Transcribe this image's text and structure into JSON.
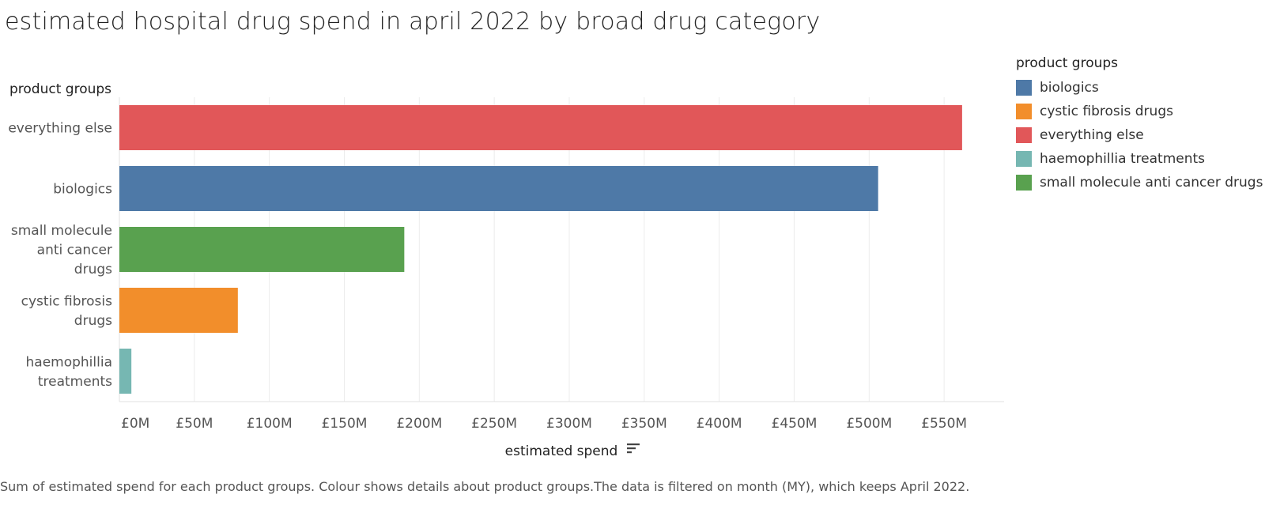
{
  "title": "estimated hospital drug spend in april 2022 by broad drug category",
  "caption": "Sum of estimated spend for each product groups. Colour shows details about product groups.The data is filtered on month (MY), which keeps April 2022.",
  "sort_icon": "sort-descending-icon",
  "legend": {
    "title": "product groups",
    "items": [
      {
        "label": "biologics",
        "color": "#4e79a7"
      },
      {
        "label": "cystic fibrosis drugs",
        "color": "#f28e2b"
      },
      {
        "label": "everything else",
        "color": "#e15759"
      },
      {
        "label": "haemophillia treatments",
        "color": "#76b7b2"
      },
      {
        "label": "small molecule anti cancer drugs",
        "color": "#59a14f"
      }
    ]
  },
  "chart_data": {
    "type": "bar",
    "orientation": "horizontal",
    "title": "estimated hospital drug spend in april 2022 by broad drug category",
    "ylabel": "product groups",
    "xlabel": "estimated spend",
    "categories": [
      "everything else",
      "biologics",
      "small molecule anti cancer drugs",
      "cystic fibrosis drugs",
      "haemophillia treatments"
    ],
    "category_label_lines": [
      [
        "everything else"
      ],
      [
        "biologics"
      ],
      [
        "small molecule",
        "anti cancer",
        "drugs"
      ],
      [
        "cystic fibrosis",
        "drugs"
      ],
      [
        "haemophillia",
        "treatments"
      ]
    ],
    "values": [
      562,
      506,
      190,
      79,
      8
    ],
    "unit": "£M",
    "colors": [
      "#e15759",
      "#4e79a7",
      "#59a14f",
      "#f28e2b",
      "#76b7b2"
    ],
    "x_ticks": [
      0,
      50,
      100,
      150,
      200,
      250,
      300,
      350,
      400,
      450,
      500,
      550
    ],
    "x_tick_labels": [
      "£0M",
      "£50M",
      "£100M",
      "£150M",
      "£200M",
      "£250M",
      "£300M",
      "£350M",
      "£400M",
      "£450M",
      "£500M",
      "£550M"
    ],
    "xlim": [
      0,
      590
    ],
    "grid": true,
    "legend_position": "right"
  }
}
